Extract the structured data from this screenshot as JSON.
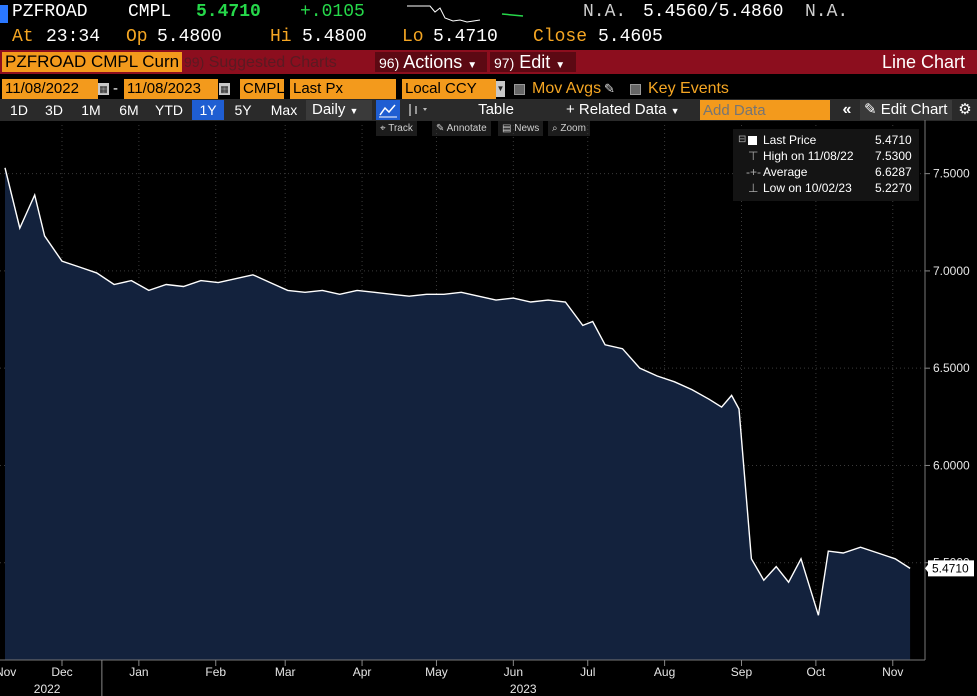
{
  "quote": {
    "ticker": "PZFROAD",
    "source": "CMPL",
    "last": "5.4710",
    "change": "+.0105",
    "bid_status": "N.A.",
    "bid_ask": "5.4560/5.4860",
    "ask_status": "N.A.",
    "time_label": "At",
    "time": "23:34",
    "open_label": "Op",
    "open": "5.4800",
    "high_label": "Hi",
    "high": "5.4800",
    "low_label": "Lo",
    "low": "5.4710",
    "close_label": "Close",
    "close": "5.4605"
  },
  "command_bar": {
    "security": "PZFROAD CMPL Curn",
    "suggested_num": "99)",
    "suggested": "Suggested Charts",
    "actions_num": "96)",
    "actions": "Actions",
    "edit_num": "97)",
    "edit": "Edit",
    "chart_type": "Line Chart"
  },
  "controls": {
    "start_date": "11/08/2022",
    "dash": "-",
    "end_date": "11/08/2023",
    "source": "CMPL",
    "field": "Last Px",
    "currency": "Local CCY",
    "mov_avgs": "Mov Avgs",
    "key_events": "Key Events"
  },
  "range": {
    "buttons": [
      "1D",
      "3D",
      "1M",
      "6M",
      "YTD",
      "1Y",
      "5Y",
      "Max"
    ],
    "active": "1Y",
    "frequency": "Daily",
    "table": "Table",
    "related": "+ Related Data",
    "add_data_placeholder": "Add Data",
    "edit_chart": "Edit Chart"
  },
  "tools": {
    "track": "Track",
    "annotate": "Annotate",
    "news": "News",
    "zoom": "Zoom"
  },
  "legend": {
    "last_label": "Last Price",
    "last_value": "5.4710",
    "high_label": "High on 11/08/22",
    "high_value": "7.5300",
    "avg_label": "Average",
    "avg_value": "6.6287",
    "low_label": "Low on 10/02/23",
    "low_value": "5.2270"
  },
  "colors": {
    "area_fill": "#13223d",
    "line": "#ffffff",
    "accent": "#f39a1c",
    "command_bar": "#8c0e1e"
  },
  "chart_data": {
    "type": "area",
    "series": [
      {
        "name": "Last Price",
        "x": [
          "2022-11-08",
          "2022-11-14",
          "2022-11-20",
          "2022-11-24",
          "2022-12-01",
          "2022-12-08",
          "2022-12-15",
          "2022-12-22",
          "2022-12-29",
          "2023-01-05",
          "2023-01-12",
          "2023-01-19",
          "2023-01-26",
          "2023-02-02",
          "2023-02-09",
          "2023-02-16",
          "2023-02-23",
          "2023-03-02",
          "2023-03-09",
          "2023-03-16",
          "2023-03-23",
          "2023-03-30",
          "2023-04-06",
          "2023-04-13",
          "2023-04-20",
          "2023-04-27",
          "2023-05-04",
          "2023-05-11",
          "2023-05-18",
          "2023-05-25",
          "2023-06-01",
          "2023-06-08",
          "2023-06-15",
          "2023-06-22",
          "2023-06-29",
          "2023-07-03",
          "2023-07-08",
          "2023-07-15",
          "2023-07-22",
          "2023-07-29",
          "2023-08-05",
          "2023-08-12",
          "2023-08-19",
          "2023-08-24",
          "2023-08-28",
          "2023-08-31",
          "2023-09-05",
          "2023-09-10",
          "2023-09-15",
          "2023-09-20",
          "2023-09-25",
          "2023-10-02",
          "2023-10-06",
          "2023-10-12",
          "2023-10-19",
          "2023-10-26",
          "2023-11-02",
          "2023-11-08"
        ],
        "values": [
          7.53,
          7.22,
          7.39,
          7.18,
          7.05,
          7.02,
          6.99,
          6.93,
          6.95,
          6.9,
          6.93,
          6.92,
          6.95,
          6.94,
          6.96,
          6.98,
          6.94,
          6.9,
          6.89,
          6.9,
          6.88,
          6.9,
          6.89,
          6.88,
          6.87,
          6.88,
          6.88,
          6.89,
          6.87,
          6.85,
          6.86,
          6.84,
          6.85,
          6.84,
          6.72,
          6.74,
          6.62,
          6.6,
          6.5,
          6.46,
          6.43,
          6.39,
          6.34,
          6.3,
          6.36,
          6.29,
          5.52,
          5.41,
          5.48,
          5.4,
          5.52,
          5.23,
          5.56,
          5.55,
          5.58,
          5.55,
          5.52,
          5.471
        ]
      }
    ],
    "ylim": [
      5.0,
      7.75
    ],
    "yticks": [
      "7.5000",
      "7.0000",
      "6.5000",
      "6.0000",
      "5.5000"
    ],
    "ytick_values": [
      7.5,
      7.0,
      6.5,
      6.0,
      5.5
    ],
    "xticks": [
      "Nov",
      "Dec",
      "Jan",
      "Feb",
      "Mar",
      "Apr",
      "May",
      "Jun",
      "Jul",
      "Aug",
      "Sep",
      "Oct",
      "Nov"
    ],
    "xtick_dates": [
      "2022-11-01",
      "2022-12-01",
      "2023-01-01",
      "2023-02-01",
      "2023-03-01",
      "2023-04-01",
      "2023-05-01",
      "2023-06-01",
      "2023-07-01",
      "2023-08-01",
      "2023-09-01",
      "2023-10-01",
      "2023-11-01"
    ],
    "year_labels": [
      "2022",
      "2023"
    ],
    "year_label_dates": [
      "2022-11-25",
      "2023-06-05"
    ],
    "xlim": [
      "2022-11-06",
      "2023-11-14"
    ],
    "last_label": "5.4710",
    "last_value": 5.471,
    "grid": true,
    "legend": "top-right"
  }
}
